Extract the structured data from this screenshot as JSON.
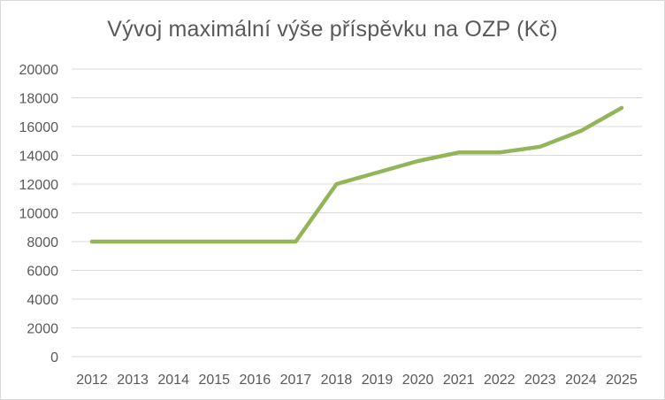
{
  "chart_data": {
    "type": "line",
    "title": "Vývoj maximální výše příspěvku na OZP (Kč)",
    "xlabel": "",
    "ylabel": "",
    "categories": [
      "2012",
      "2013",
      "2014",
      "2015",
      "2016",
      "2017",
      "2018",
      "2019",
      "2020",
      "2021",
      "2022",
      "2023",
      "2024",
      "2025"
    ],
    "series": [
      {
        "values": [
          8000,
          8000,
          8000,
          8000,
          8000,
          8000,
          12000,
          12800,
          13600,
          14200,
          14200,
          14600,
          15700,
          17300
        ]
      }
    ],
    "ylim": [
      0,
      20000
    ],
    "yticks": [
      0,
      2000,
      4000,
      6000,
      8000,
      10000,
      12000,
      14000,
      16000,
      18000,
      20000
    ],
    "grid": true,
    "legend": "none",
    "colors": {
      "series": "#92b55a",
      "grid": "#d9d9d9",
      "text": "#595959"
    }
  }
}
